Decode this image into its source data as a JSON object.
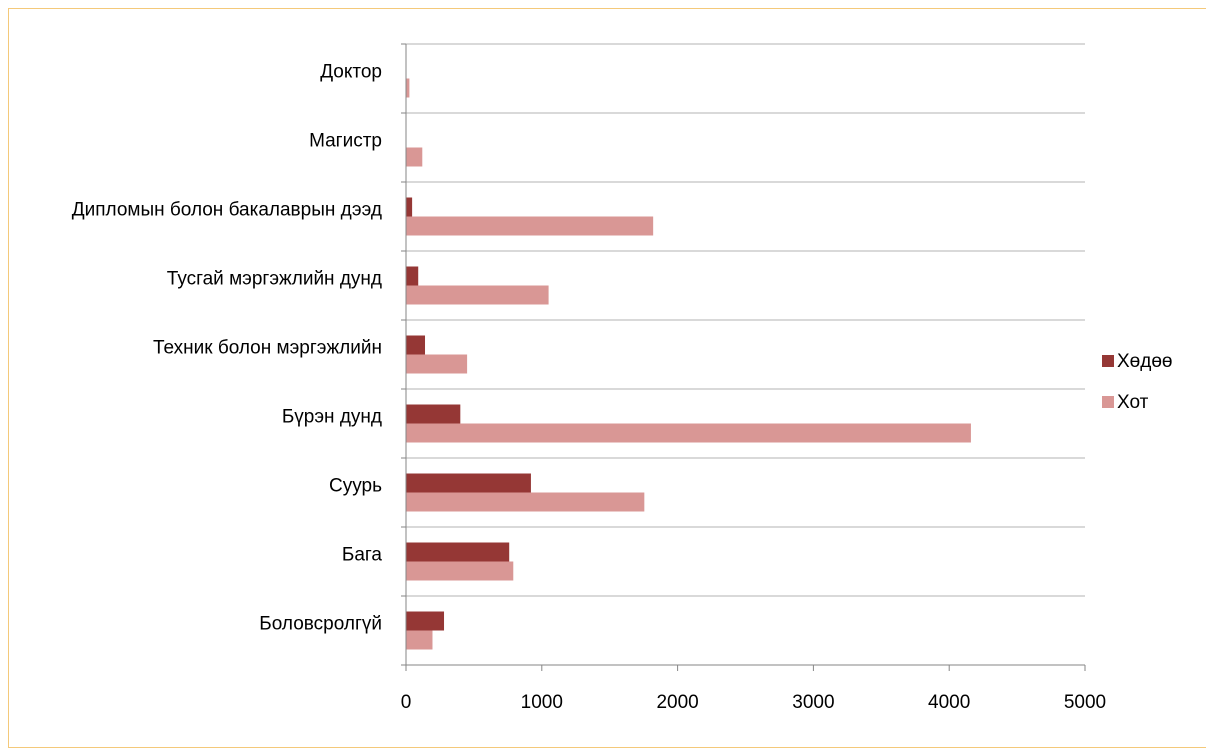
{
  "chart_data": {
    "type": "bar",
    "orientation": "horizontal",
    "title": "",
    "xlabel": "",
    "ylabel": "",
    "categories": [
      "Боловсролгүй",
      "Бага",
      "Суурь",
      "Бүрэн дунд",
      "Техник болон мэргэжлийн",
      "Тусгай мэргэжлийн дунд",
      "Дипломын болон бакалаврын дээд",
      "Магистр",
      "Доктор"
    ],
    "series": [
      {
        "name": "Хөдөө",
        "color": "#953735",
        "values": [
          280,
          760,
          920,
          400,
          140,
          90,
          45,
          0,
          0
        ]
      },
      {
        "name": "Хот",
        "color": "#d99795",
        "values": [
          195,
          790,
          1755,
          4160,
          450,
          1050,
          1820,
          120,
          25
        ]
      }
    ],
    "xlim": [
      0,
      5000
    ],
    "xticks": [
      "0",
      "1000",
      "2000",
      "3000",
      "4000",
      "5000"
    ],
    "grid": true,
    "legend_position": "right"
  }
}
